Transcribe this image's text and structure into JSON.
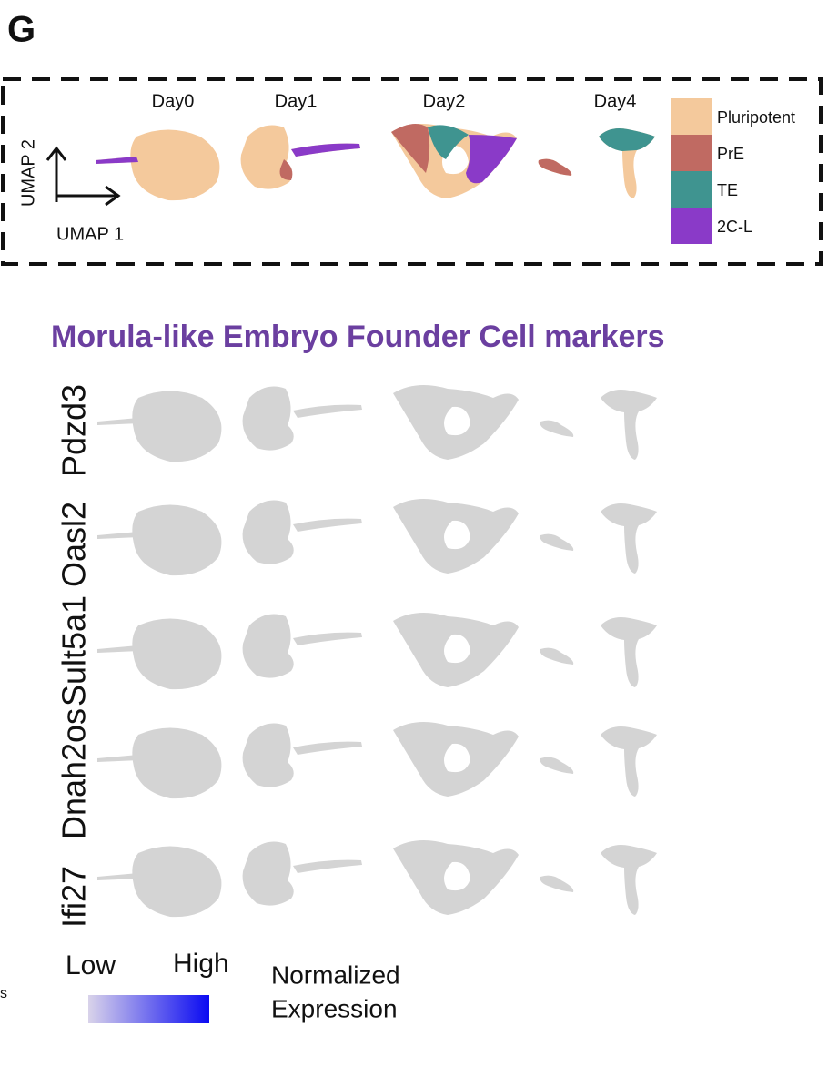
{
  "panel_label": "G",
  "umap": {
    "days": [
      "Day0",
      "Day1",
      "Day2",
      "Day4"
    ],
    "x_label": "UMAP 1",
    "y_label": "UMAP 2",
    "legend": [
      {
        "name": "Pluripotent",
        "color": "#f4c99c"
      },
      {
        "name": "PrE",
        "color": "#c06a62"
      },
      {
        "name": "TE",
        "color": "#3f9490"
      },
      {
        "name": "2C-L",
        "color": "#8a3ac8"
      }
    ]
  },
  "title": "Morula-like Embryo Founder Cell markers",
  "genes": [
    "Pdzd3",
    "Oasl2",
    "Sult5a1",
    "Dnah2os",
    "Ifi27"
  ],
  "colorbar": {
    "low": "Low",
    "high": "High",
    "label_lines": [
      "Normalized",
      "Expression"
    ],
    "colors": [
      "#d9d3ea",
      "#0a0af2"
    ]
  },
  "edge_text": "s"
}
